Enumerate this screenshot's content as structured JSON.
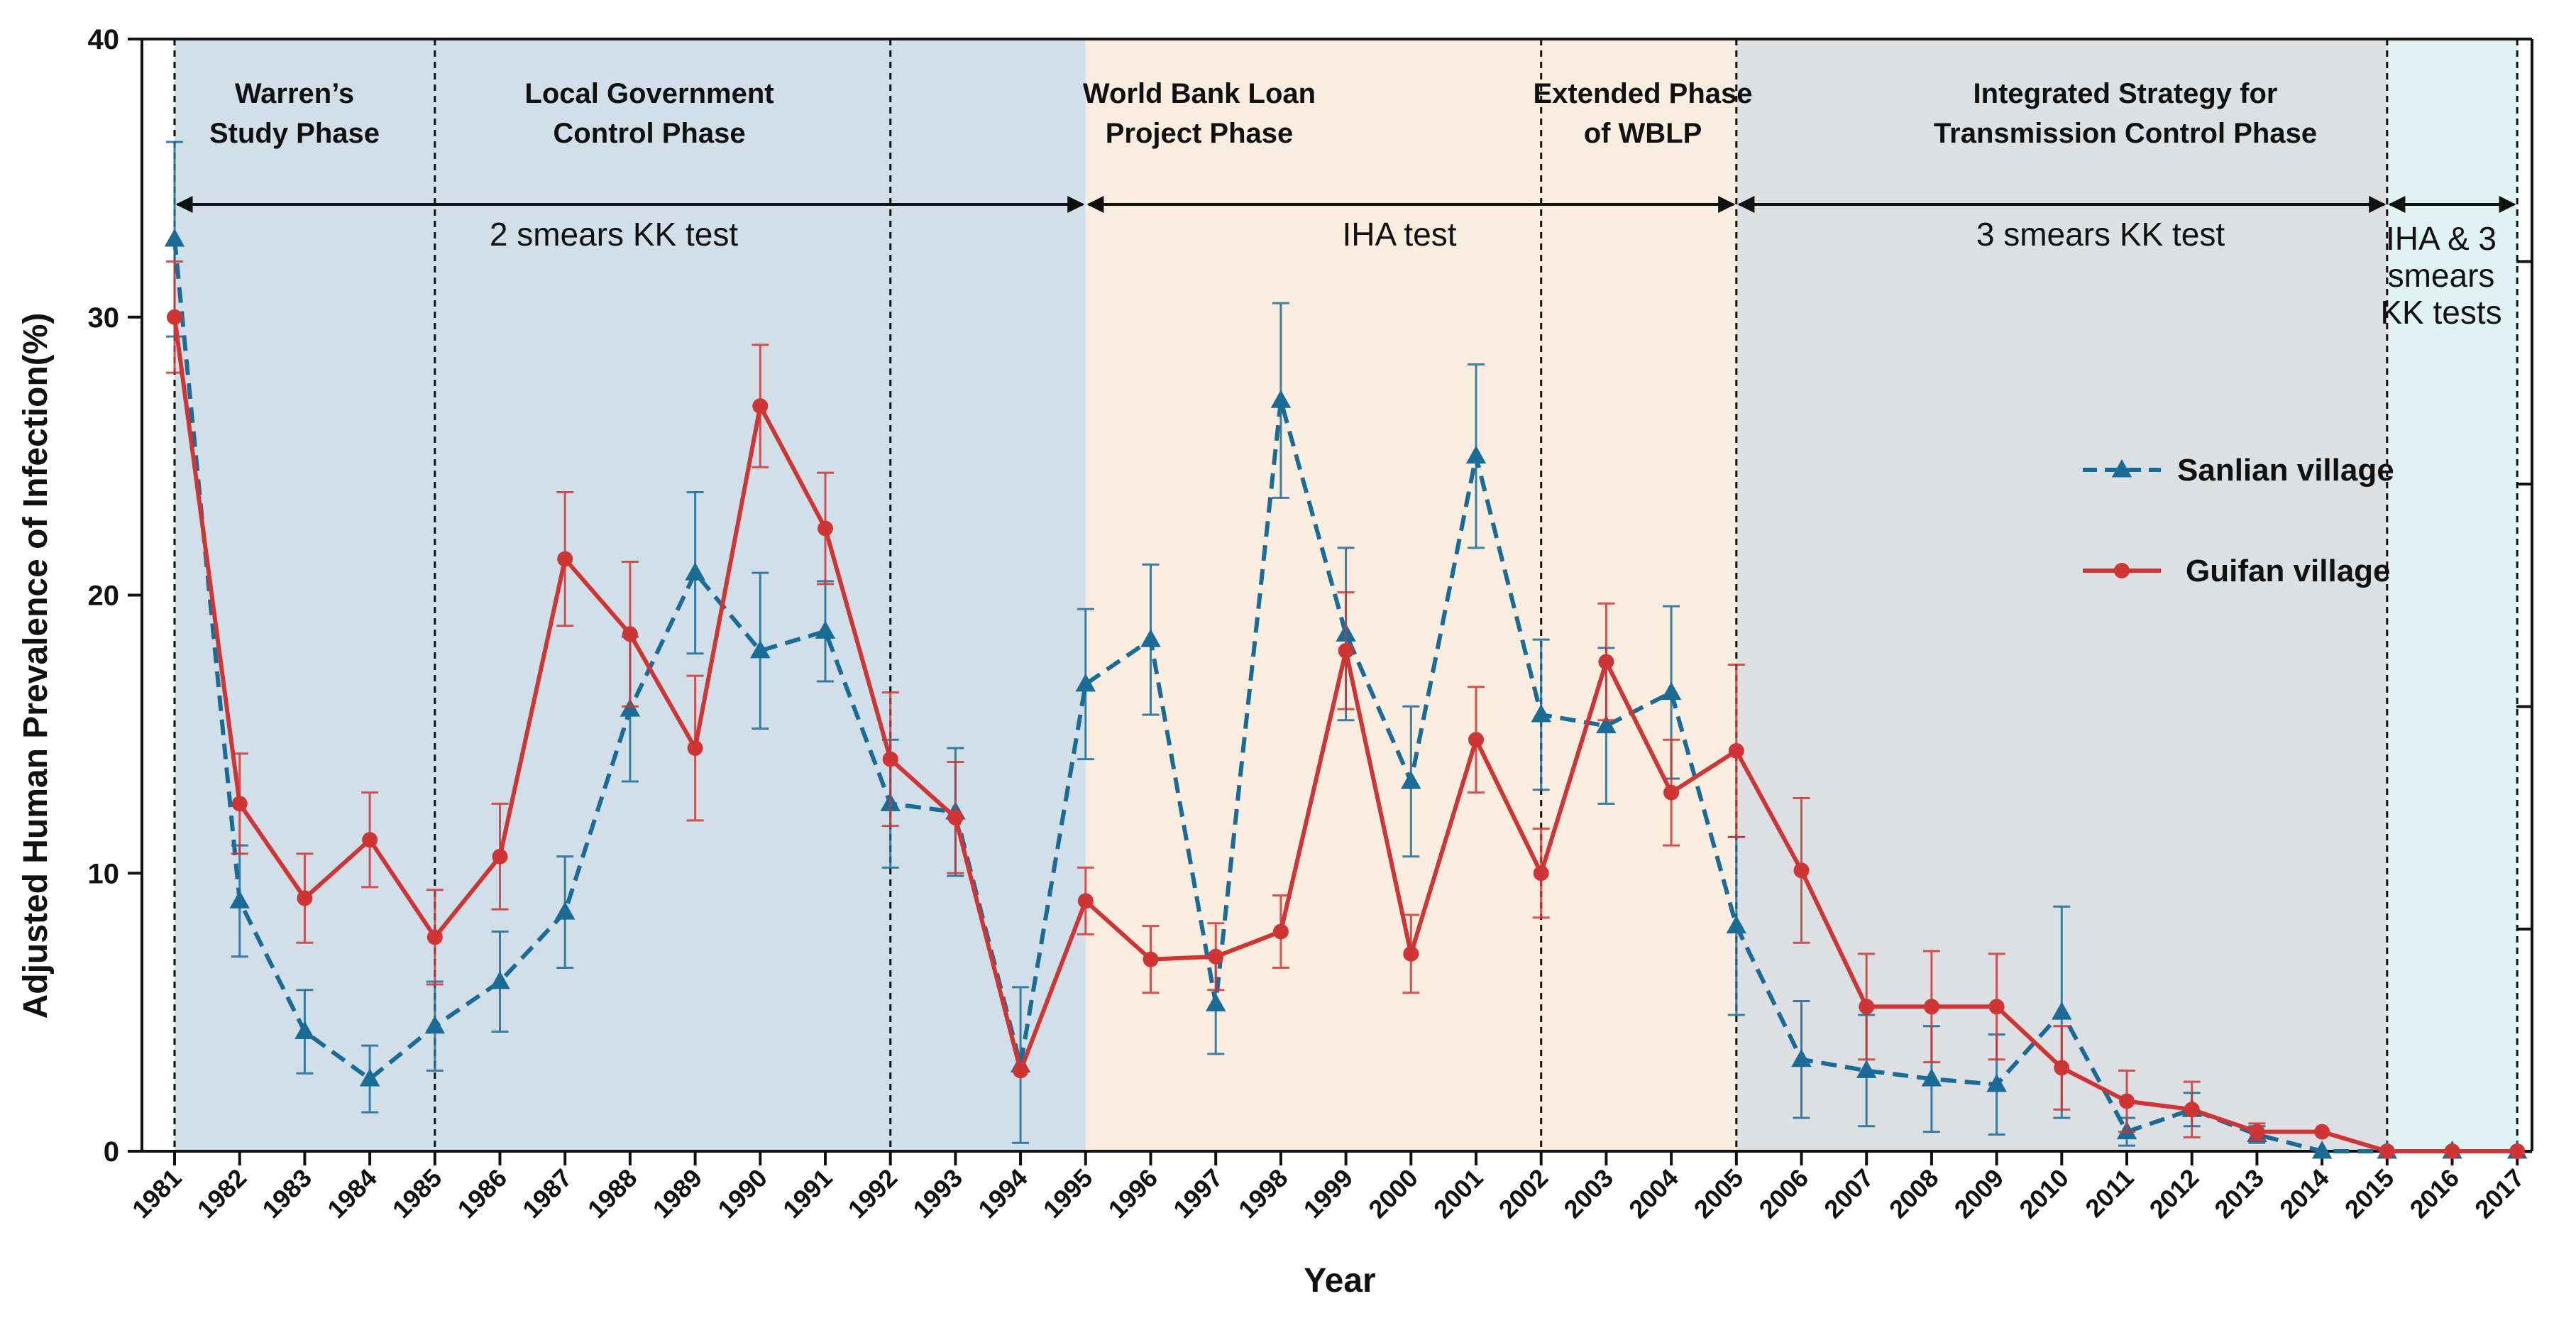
{
  "chart_data": {
    "type": "line",
    "title": "",
    "xlabel": "Year",
    "ylabel": "Adjusted Human Prevalence of Infection(%)",
    "ylim": [
      0,
      40
    ],
    "yticks": [
      "0",
      "10",
      "20",
      "30",
      "40"
    ],
    "x": [
      "1981",
      "1982",
      "1983",
      "1984",
      "1985",
      "1986",
      "1987",
      "1988",
      "1989",
      "1990",
      "1991",
      "1992",
      "1993",
      "1994",
      "1995",
      "1996",
      "1997",
      "1998",
      "1999",
      "2000",
      "2001",
      "2002",
      "2003",
      "2004",
      "2005",
      "2006",
      "2007",
      "2008",
      "2009",
      "2010",
      "2011",
      "2012",
      "2013",
      "2014",
      "2015",
      "2016",
      "2017"
    ],
    "legend_position": "right",
    "series": [
      {
        "name": "Sanlian village",
        "color": "#1a6b96",
        "line_style": "dashed",
        "marker": "triangle",
        "values": [
          32.8,
          9.0,
          4.3,
          2.6,
          4.5,
          6.1,
          8.6,
          15.9,
          20.8,
          18.0,
          18.7,
          12.5,
          12.2,
          3.1,
          16.8,
          18.4,
          5.3,
          27.0,
          18.6,
          13.3,
          25.0,
          15.7,
          15.3,
          16.5,
          8.1,
          3.3,
          2.9,
          2.6,
          2.4,
          5.0,
          0.7,
          1.5,
          0.6,
          0.0,
          0.0,
          0.0,
          0.0
        ],
        "err": [
          3.5,
          2.0,
          1.5,
          1.2,
          1.6,
          1.8,
          2.0,
          2.6,
          2.9,
          2.8,
          1.8,
          2.3,
          2.3,
          2.8,
          2.7,
          2.7,
          1.8,
          3.5,
          3.1,
          2.7,
          3.3,
          2.7,
          2.8,
          3.1,
          3.2,
          2.1,
          2.0,
          1.9,
          1.8,
          3.8,
          0.5,
          0.6,
          0.3,
          0.0,
          0.0,
          0.0,
          0.0
        ]
      },
      {
        "name": "Guifan village",
        "color": "#d03535",
        "line_style": "solid",
        "marker": "circle",
        "values": [
          30.0,
          12.5,
          9.1,
          11.2,
          7.7,
          10.6,
          21.3,
          18.6,
          14.5,
          26.8,
          22.4,
          14.1,
          12.0,
          2.9,
          9.0,
          6.9,
          7.0,
          7.9,
          18.0,
          7.1,
          14.8,
          10.0,
          17.6,
          12.9,
          14.4,
          10.1,
          5.2,
          5.2,
          5.2,
          3.0,
          1.8,
          1.5,
          0.7,
          0.7,
          0.0,
          0.0,
          0.0
        ],
        "err": [
          2.0,
          1.8,
          1.6,
          1.7,
          1.7,
          1.9,
          2.4,
          2.6,
          2.6,
          2.2,
          2.0,
          2.4,
          2.0,
          0.0,
          1.2,
          1.2,
          1.2,
          1.3,
          2.1,
          1.4,
          1.9,
          1.6,
          2.1,
          1.9,
          3.1,
          2.6,
          1.9,
          2.0,
          1.9,
          1.5,
          1.1,
          1.0,
          0.3,
          0.0,
          0.0,
          0.0,
          0.0
        ]
      }
    ],
    "phases": [
      {
        "lines": [
          "Warren’s",
          "Study Phase"
        ],
        "start": "1981",
        "end": "1985",
        "color": "#d1e0e8"
      },
      {
        "lines": [
          "Local Government",
          "Control Phase"
        ],
        "start": "1985",
        "end": "1992",
        "color": "#d1e0e8"
      },
      {
        "lines": [
          "World Bank Loan",
          "Project Phase"
        ],
        "start": "1992",
        "end": "2002",
        "color": "#d1e0e8"
      },
      {
        "lines": [
          "Extended Phase",
          "of WBLP"
        ],
        "start": "2002",
        "end": "2005",
        "color": "#f9ede0"
      },
      {
        "lines": [
          "Integrated Strategy for",
          "Transmission Control Phase"
        ],
        "start": "2005",
        "end": "2015",
        "color": "#dce0e2"
      },
      {
        "lines": [],
        "start": "2015",
        "end": "2017",
        "color": "#dff2f1"
      }
    ],
    "shading": [
      {
        "start": "1981",
        "end": "1995",
        "color": "#d1e0e8"
      },
      {
        "start": "1995",
        "end": "2005",
        "color": "#f9ede0"
      },
      {
        "start": "2005",
        "end": "2015",
        "color": "#dce0e2"
      },
      {
        "start": "2015",
        "end": "2017",
        "color": "#dff2f1"
      }
    ],
    "test_periods": [
      {
        "lines": [
          "2 smears KK test"
        ],
        "start": "1981",
        "end": "1995"
      },
      {
        "lines": [
          "IHA test"
        ],
        "start": "1995",
        "end": "2005"
      },
      {
        "lines": [
          "3 smears KK test"
        ],
        "start": "2005",
        "end": "2015"
      },
      {
        "lines": [
          "IHA & 3",
          "smears",
          "KK tests"
        ],
        "start": "2015",
        "end": "2017"
      }
    ]
  }
}
